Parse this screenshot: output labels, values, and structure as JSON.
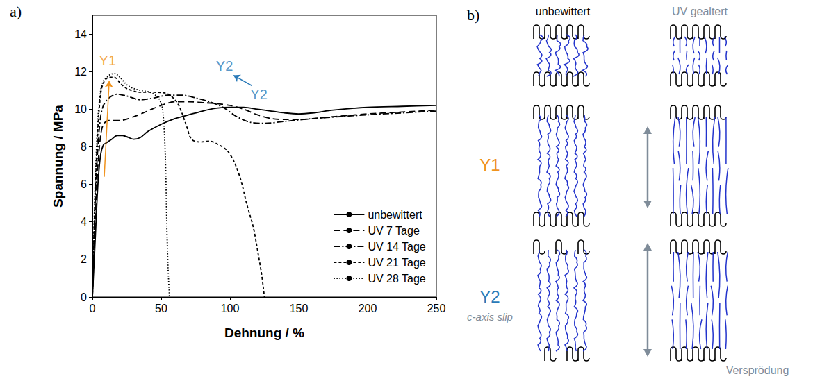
{
  "chart_data": {
    "type": "line",
    "x_label": "Dehnung / %",
    "y_label": "Spannung / MPa",
    "xlim": [
      0,
      250
    ],
    "xticks": [
      0,
      50,
      100,
      150,
      200,
      250
    ],
    "ylim": [
      0,
      15
    ],
    "yticks": [
      0,
      2,
      4,
      6,
      8,
      10,
      12,
      14
    ],
    "grid": false,
    "legend": "bottom-right",
    "series": [
      {
        "name": "unbewittert",
        "color": "#000000",
        "line_style": "solid",
        "x": [
          0,
          2,
          4,
          6,
          8,
          10,
          14,
          18,
          22,
          26,
          30,
          35,
          40,
          50,
          60,
          70,
          80,
          90,
          100,
          110,
          120,
          130,
          140,
          150,
          160,
          175,
          200,
          225,
          250
        ],
        "values": [
          0,
          3,
          6,
          7.6,
          8.1,
          8.2,
          8.4,
          8.6,
          8.6,
          8.5,
          8.4,
          8.5,
          8.8,
          9.2,
          9.5,
          9.7,
          9.9,
          10.05,
          10.1,
          10.1,
          10.0,
          9.9,
          9.8,
          9.75,
          9.8,
          9.95,
          10.1,
          10.15,
          10.2
        ]
      },
      {
        "name": "UV 7 Tage",
        "color": "#000000",
        "line_style": "dashed",
        "x": [
          0,
          2,
          4,
          6,
          8,
          12,
          20,
          30,
          40,
          50,
          60,
          70,
          80,
          90,
          100,
          110,
          120,
          130,
          140,
          150,
          175,
          200,
          225,
          250
        ],
        "values": [
          0,
          4,
          7,
          8.6,
          9.2,
          9.4,
          9.4,
          9.6,
          9.9,
          10.2,
          10.4,
          10.4,
          10.35,
          10.3,
          10.2,
          10.0,
          9.7,
          9.5,
          9.45,
          9.45,
          9.6,
          9.75,
          9.85,
          9.95
        ]
      },
      {
        "name": "UV 14 Tage",
        "color": "#000000",
        "line_style": "dashdot",
        "x": [
          0,
          2,
          4,
          6,
          8,
          12,
          18,
          25,
          35,
          45,
          55,
          65,
          75,
          85,
          95,
          105,
          115,
          125,
          140,
          160,
          200,
          250
        ],
        "values": [
          0,
          5,
          8,
          9.6,
          10.2,
          10.6,
          10.8,
          10.7,
          10.5,
          10.6,
          10.75,
          10.75,
          10.6,
          10.4,
          10.1,
          9.6,
          9.3,
          9.25,
          9.35,
          9.5,
          9.7,
          9.9
        ]
      },
      {
        "name": "UV 21 Tage",
        "color": "#000000",
        "line_style": "short-dashed",
        "x": [
          0,
          2,
          4,
          6,
          8,
          12,
          16,
          20,
          25,
          35,
          45,
          55,
          62,
          68,
          72,
          78,
          85,
          92,
          98,
          103,
          108,
          112,
          117,
          120,
          123,
          125
        ],
        "values": [
          0,
          5.5,
          9,
          10.8,
          11.4,
          11.7,
          11.7,
          11.4,
          11.1,
          10.9,
          10.9,
          10.8,
          10.3,
          9.2,
          8.4,
          8.25,
          8.3,
          8.1,
          7.8,
          7.2,
          6.2,
          5.0,
          3.7,
          2.5,
          1.2,
          0
        ]
      },
      {
        "name": "UV 28 Tage",
        "color": "#000000",
        "line_style": "dotted",
        "x": [
          0,
          2,
          4,
          6,
          8,
          12,
          16,
          20,
          25,
          30,
          35,
          42,
          48,
          51,
          53,
          54,
          55,
          56
        ],
        "values": [
          0,
          6,
          9.5,
          11.0,
          11.5,
          11.8,
          11.9,
          11.7,
          11.3,
          11.1,
          11.0,
          10.9,
          10.6,
          10.0,
          7.5,
          4,
          1.5,
          0
        ]
      }
    ],
    "annotations": [
      {
        "text": "Y1",
        "x": 11,
        "y": 12.6,
        "color": "#f0931e"
      },
      {
        "text": "Y2",
        "x": 96,
        "y": 12.3,
        "color": "#2a7ab8"
      },
      {
        "text": "Y2",
        "x": 121,
        "y": 10.8,
        "color": "#2a7ab8"
      }
    ],
    "arrows": [
      {
        "from": [
          8.6,
          6.4
        ],
        "to": [
          12.2,
          11.5
        ],
        "color": "#f0931e"
      },
      {
        "from": [
          116,
          11.25
        ],
        "to": [
          102.6,
          11.8
        ],
        "color": "#2a7ab8"
      }
    ]
  },
  "panel_labels": [
    "a)",
    "b)"
  ],
  "diagram": {
    "columns": [
      {
        "label": "unbewittert",
        "color": "#000000"
      },
      {
        "label": "UV gealtert",
        "color": "#7f8c99"
      }
    ],
    "rows": [
      {
        "label": "Y1",
        "color": "#f0931e"
      },
      {
        "label": "Y2",
        "color": "#2a7ab8",
        "sublabel": "c-axis slip",
        "sublabel_color": "#7f8c99"
      }
    ],
    "footer": {
      "text": "Versprödung",
      "color": "#7f8c99"
    }
  }
}
